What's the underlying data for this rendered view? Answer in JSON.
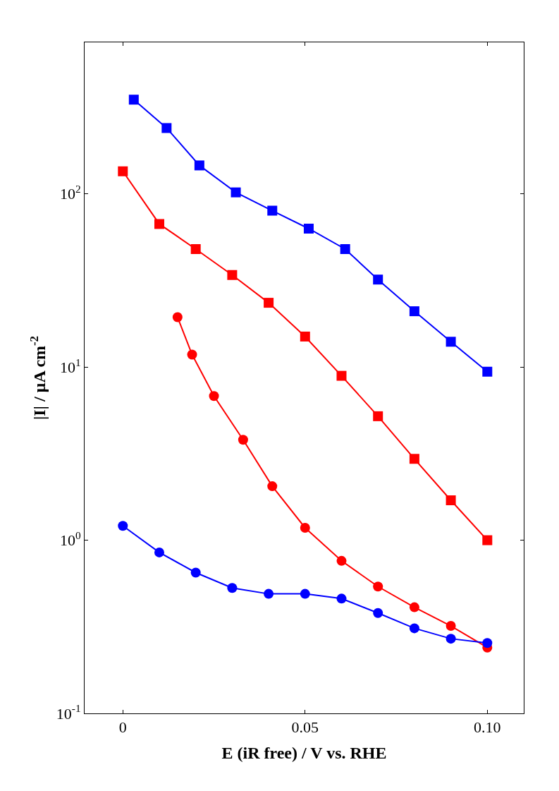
{
  "chart_data": {
    "type": "line",
    "xlabel": "E (iR free) / V vs. RHE",
    "ylabel": "|I| / µA cm$^{-2}$",
    "log": "y",
    "xlim": [
      -0.0105,
      0.11
    ],
    "ylim": [
      0.1,
      750
    ],
    "xticks": [
      0,
      0.05,
      {
        "value": 0.1,
        "label": "0.10"
      }
    ],
    "yticks": [
      {
        "value": 0.1,
        "label": "10$^{-1}$"
      },
      {
        "value": 1,
        "label": "10$^{0}$"
      },
      {
        "value": 10,
        "label": "10$^{1}$"
      },
      {
        "value": 100,
        "label": "10$^{2}$"
      }
    ],
    "line_style": "solid",
    "series": [
      {
        "color": "#0000ff",
        "marker": "square",
        "x": [
          0.003,
          0.012,
          0.021,
          0.031,
          0.041,
          0.051,
          0.061,
          0.07,
          0.08,
          0.09,
          0.1
        ],
        "values": [
          350,
          240,
          146,
          102,
          80,
          63,
          48,
          32,
          21,
          14,
          9.4
        ]
      },
      {
        "color": "#ff0000",
        "marker": "square",
        "x": [
          0,
          0.01,
          0.02,
          0.03,
          0.04,
          0.05,
          0.06,
          0.07,
          0.08,
          0.09,
          0.1
        ],
        "values": [
          135,
          67,
          48,
          34,
          23.5,
          15,
          8.9,
          5.2,
          2.95,
          1.7,
          1.0
        ]
      },
      {
        "color": "#ff0000",
        "marker": "circle",
        "x": [
          0.015,
          0.019,
          0.025,
          0.033,
          0.041,
          0.05,
          0.06,
          0.07,
          0.08,
          0.09,
          0.1
        ],
        "values": [
          19.4,
          11.8,
          6.8,
          3.8,
          2.05,
          1.18,
          0.76,
          0.54,
          0.41,
          0.32,
          0.24
        ]
      },
      {
        "color": "#0000ff",
        "marker": "circle",
        "x": [
          0,
          0.01,
          0.02,
          0.03,
          0.04,
          0.05,
          0.06,
          0.07,
          0.08,
          0.09,
          0.1
        ],
        "values": [
          1.21,
          0.85,
          0.65,
          0.53,
          0.49,
          0.49,
          0.46,
          0.38,
          0.31,
          0.27,
          0.255
        ]
      }
    ]
  }
}
